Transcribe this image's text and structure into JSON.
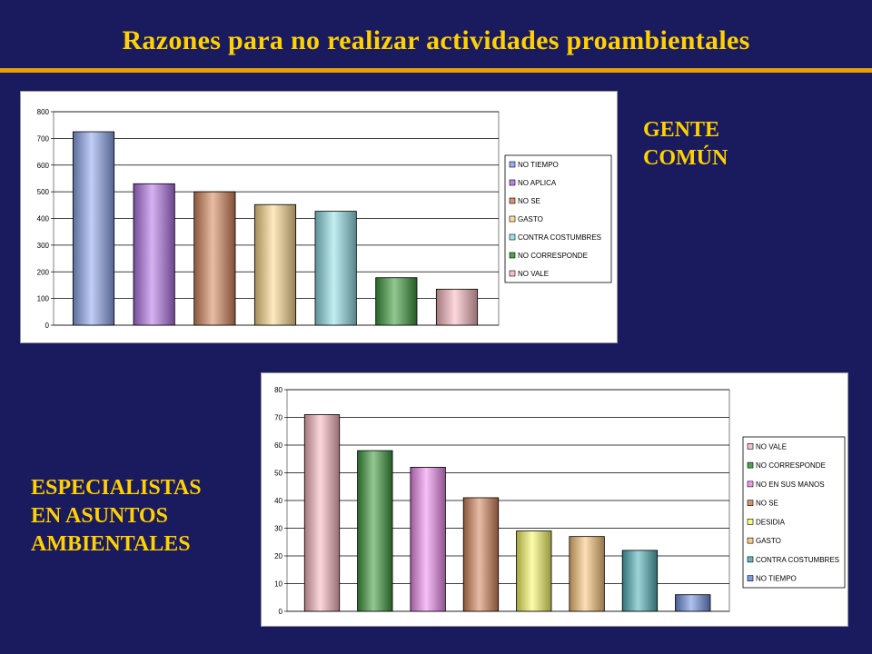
{
  "title": "Razones para no realizar actividades proambientales",
  "labels": {
    "gente": "GENTE\nCOMÚN",
    "especialistas": "ESPECIALISTAS\nEN ASUNTOS\nAMBIENTALES"
  },
  "colors": {
    "background": "#1a1a5e",
    "title": "#ffd100",
    "rule": "#e8a000"
  },
  "chart_data": [
    {
      "type": "bar",
      "title": "",
      "xlabel": "",
      "ylabel": "",
      "ylim": [
        0,
        800
      ],
      "yticks": [
        0,
        100,
        200,
        300,
        400,
        500,
        600,
        700,
        800
      ],
      "grid": true,
      "legend_position": "right",
      "series": [
        {
          "name": "NO TIEMPO",
          "value": 725,
          "color": "#8ea6ee"
        },
        {
          "name": "NO APLICA",
          "value": 530,
          "color": "#b473e8"
        },
        {
          "name": "NO SE",
          "value": 500,
          "color": "#d5865c"
        },
        {
          "name": "GASTO",
          "value": 452,
          "color": "#fcd98c"
        },
        {
          "name": "CONTRA COSTUMBRES",
          "value": 427,
          "color": "#90e0e8"
        },
        {
          "name": "NO CORRESPONDE",
          "value": 178,
          "color": "#3a9a3a"
        },
        {
          "name": "NO VALE",
          "value": 135,
          "color": "#fab8c0"
        }
      ]
    },
    {
      "type": "bar",
      "title": "",
      "xlabel": "",
      "ylabel": "",
      "ylim": [
        0,
        80
      ],
      "yticks": [
        0,
        10,
        20,
        30,
        40,
        50,
        60,
        70,
        80
      ],
      "grid": true,
      "legend_position": "right",
      "series": [
        {
          "name": "NO VALE",
          "value": 71,
          "color": "#fab8c0"
        },
        {
          "name": "NO CORRESPONDE",
          "value": 58,
          "color": "#3a9a3a"
        },
        {
          "name": "NO EN SUS MANOS",
          "value": 52,
          "color": "#f08cf0"
        },
        {
          "name": "NO SE",
          "value": 41,
          "color": "#d5865c"
        },
        {
          "name": "DESIDIA",
          "value": 29,
          "color": "#fafa66"
        },
        {
          "name": "GASTO",
          "value": 27,
          "color": "#fcc57a"
        },
        {
          "name": "CONTRA COSTUMBRES",
          "value": 22,
          "color": "#4fb0b8"
        },
        {
          "name": "NO TIEMPO",
          "value": 6,
          "color": "#6f8fe0"
        }
      ]
    }
  ]
}
